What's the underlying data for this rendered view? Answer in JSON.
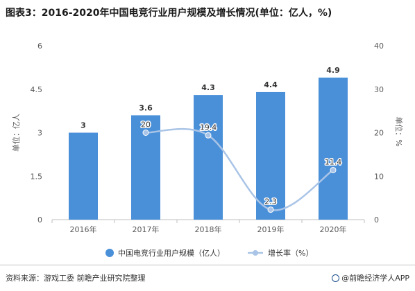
{
  "title": "图表3：2016-2020年中国电竞行业用户规模及增长情况(单位：亿人，%)",
  "source": "资料来源：游戏工委 前瞻产业研究院整理",
  "brand": "@前瞻经济学人APP",
  "colors": {
    "bar": "#4a90d9",
    "line": "#a9c4e6",
    "axis": "#595959",
    "grid": "#e5e5e5"
  },
  "chart_data": {
    "type": "bar",
    "categories": [
      "2016年",
      "2017年",
      "2018年",
      "2019年",
      "2020年"
    ],
    "series": [
      {
        "name": "中国电竞行业用户规模（亿人）",
        "type": "bar",
        "axis": "left",
        "values": [
          3,
          3.6,
          4.3,
          4.4,
          4.9
        ],
        "labels": [
          "3",
          "3.6",
          "4.3",
          "4.4",
          "4.9"
        ]
      },
      {
        "name": "增长率（%）",
        "type": "line",
        "axis": "right",
        "values": [
          null,
          20,
          19.4,
          2.3,
          11.4
        ],
        "labels": [
          "",
          "20",
          "19.4",
          "2.3",
          "11.4"
        ]
      }
    ],
    "ylabel": "单位：亿人",
    "y2label": "单位：%",
    "ylim": [
      0,
      6
    ],
    "yticks": [
      "0",
      "1.5",
      "3",
      "4.5",
      "6"
    ],
    "ytick_values": [
      0,
      1.5,
      3,
      4.5,
      6
    ],
    "y2lim": [
      0,
      40
    ],
    "y2ticks": [
      "0",
      "10",
      "20",
      "30",
      "40"
    ],
    "y2tick_values": [
      0,
      10,
      20,
      30,
      40
    ],
    "grid": false,
    "legend": "bottom-center"
  }
}
